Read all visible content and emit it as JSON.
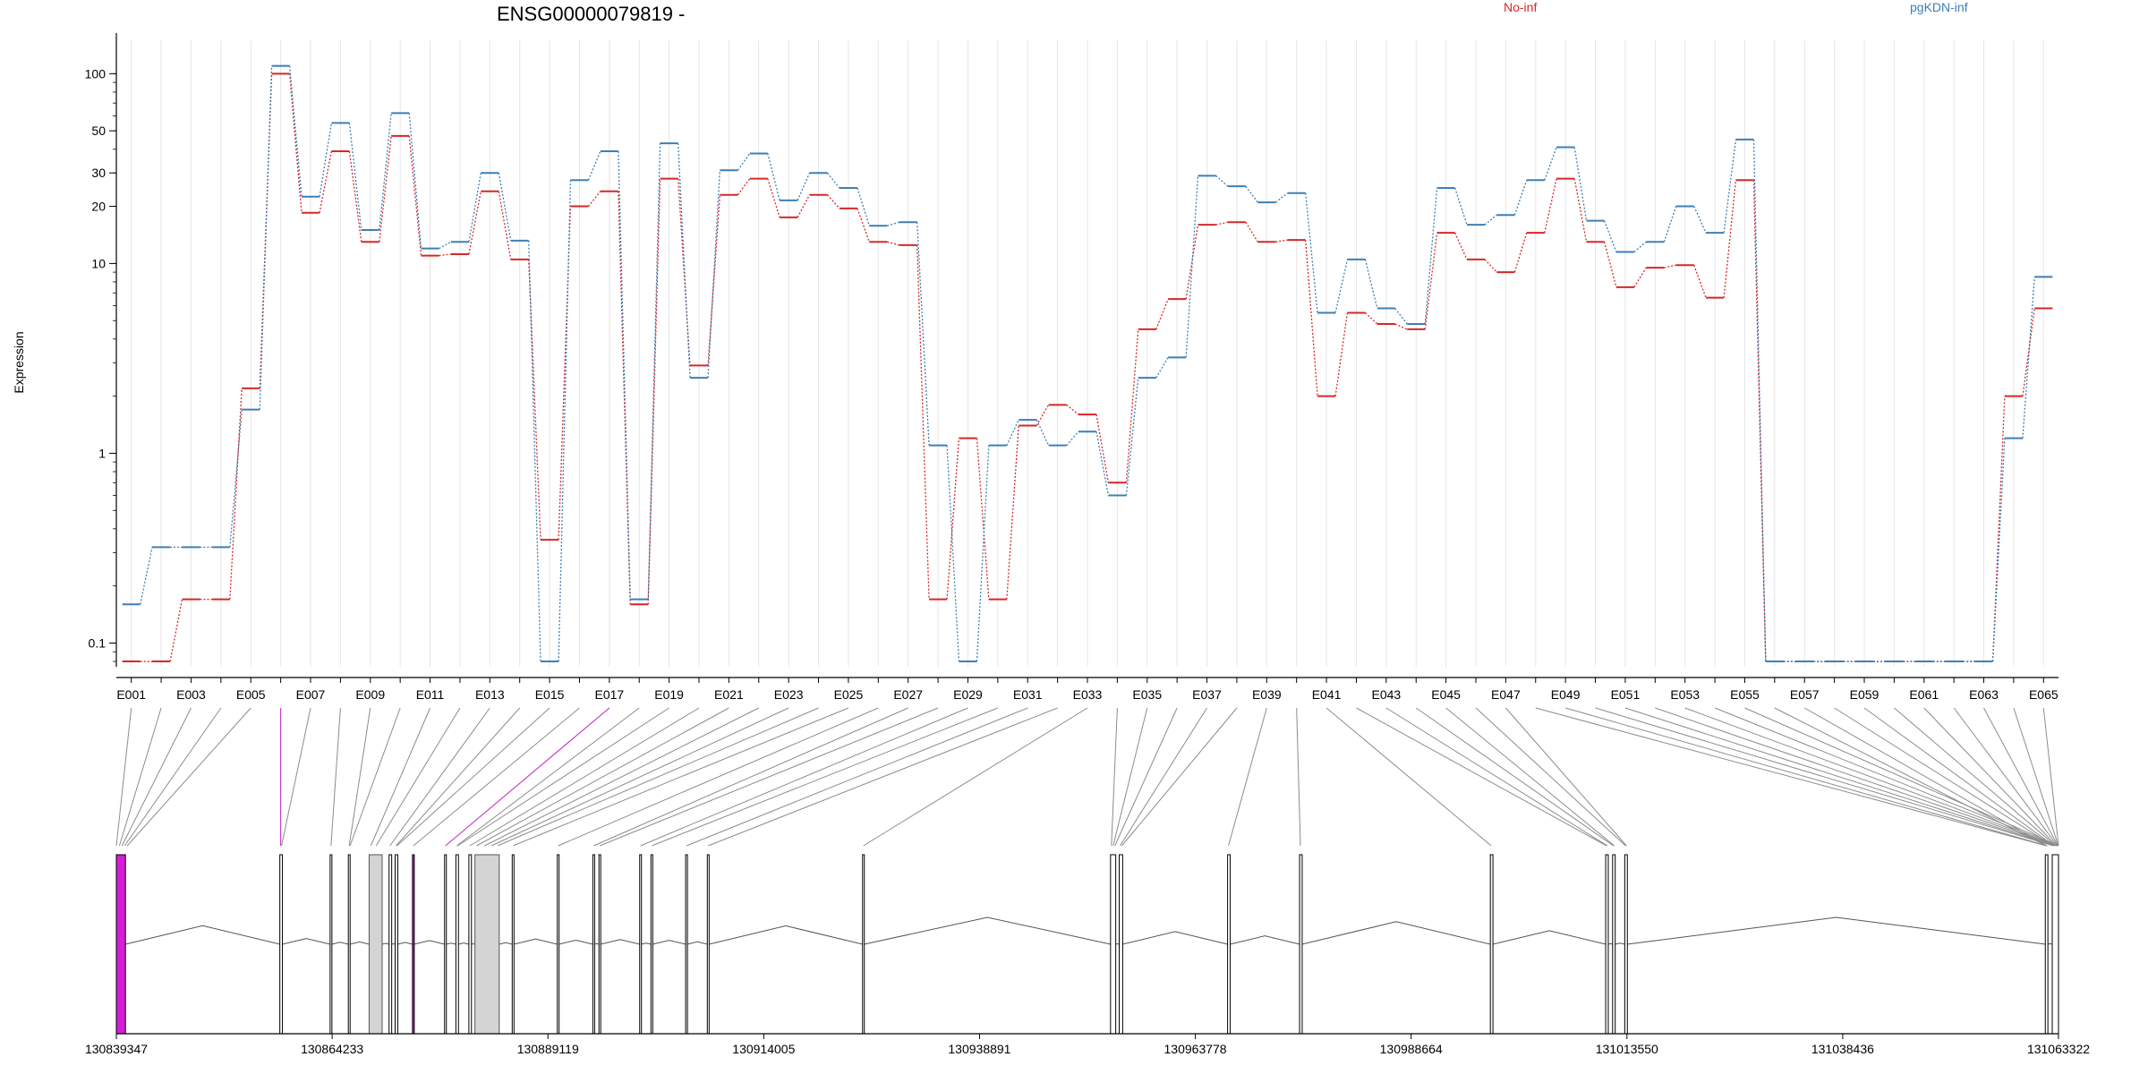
{
  "chart_data": {
    "type": "line",
    "title": "ENSG00000079819 -",
    "ylabel": "Expression",
    "yscale": "log",
    "yticks": [
      0.1,
      1,
      10,
      20,
      30,
      50,
      100
    ],
    "ylim": [
      0.075,
      150
    ],
    "grid": "vertical",
    "legend_placement": "top-right",
    "series": [
      {
        "name": "No-inf",
        "color": "#d62728",
        "values": [
          0.08,
          0.08,
          0.17,
          0.17,
          2.2,
          100,
          18.5,
          39,
          13,
          47,
          11,
          11.2,
          24,
          10.5,
          0.35,
          20,
          24,
          0.16,
          28,
          2.9,
          23,
          28,
          17.5,
          23,
          19.5,
          13,
          12.5,
          0.17,
          1.2,
          0.17,
          1.4,
          1.8,
          1.6,
          0.7,
          4.5,
          6.5,
          16,
          16.5,
          13,
          13.3,
          2,
          5.5,
          4.8,
          4.5,
          14.5,
          10.5,
          9,
          14.5,
          28,
          13,
          7.5,
          9.5,
          9.8,
          6.6,
          27.5,
          0.08,
          0.08,
          0.08,
          0.08,
          0.08,
          0.08,
          0.08,
          0.08,
          2,
          5.8
        ]
      },
      {
        "name": "pgKDN-inf",
        "color": "#3c7fb8",
        "values": [
          0.16,
          0.32,
          0.32,
          0.32,
          1.7,
          110,
          22.5,
          55,
          15,
          62,
          12,
          13,
          30,
          13.2,
          0.08,
          27.5,
          39,
          0.17,
          43,
          2.5,
          31,
          38,
          21.5,
          30,
          25,
          15.8,
          16.5,
          1.1,
          0.08,
          1.1,
          1.5,
          1.1,
          1.3,
          0.6,
          2.5,
          3.2,
          29,
          25.5,
          21,
          23.5,
          5.5,
          10.5,
          5.8,
          4.8,
          25,
          16,
          18,
          27.5,
          41,
          16.8,
          11.5,
          13,
          20,
          14.5,
          45,
          0.08,
          0.08,
          0.08,
          0.08,
          0.08,
          0.08,
          0.08,
          0.08,
          1.2,
          8.5
        ]
      }
    ],
    "exon_labels": [
      "E001",
      "E003",
      "E005",
      "E007",
      "E009",
      "E011",
      "E013",
      "E015",
      "E017",
      "E019",
      "E021",
      "E023",
      "E025",
      "E027",
      "E029",
      "E031",
      "E033",
      "E035",
      "E037",
      "E039",
      "E041",
      "E043",
      "E045",
      "E047",
      "E049",
      "E051",
      "E053",
      "E055",
      "E057",
      "E059",
      "E061",
      "E063",
      "E065"
    ],
    "genomic_axis": {
      "ticks": [
        "130839347",
        "130864233",
        "130889119",
        "130914005",
        "130938891",
        "130963778",
        "130988664",
        "131013550",
        "131038436",
        "131063322"
      ],
      "range": [
        130839347,
        131063322
      ]
    },
    "gene_model": {
      "features": [
        {
          "start": 130839347,
          "end": 130840400,
          "kind": "highlight"
        },
        {
          "start": 130858200,
          "end": 130858500,
          "kind": "exon"
        },
        {
          "start": 130864000,
          "end": 130864200,
          "kind": "exon"
        },
        {
          "start": 130866100,
          "end": 130866300,
          "kind": "exon"
        },
        {
          "start": 130868500,
          "end": 130870000,
          "kind": "alt"
        },
        {
          "start": 130870800,
          "end": 130871100,
          "kind": "exon"
        },
        {
          "start": 130871500,
          "end": 130871800,
          "kind": "exon"
        },
        {
          "start": 130873500,
          "end": 130873700,
          "kind": "highlight"
        },
        {
          "start": 130877200,
          "end": 130877400,
          "kind": "exon"
        },
        {
          "start": 130878500,
          "end": 130878800,
          "kind": "exon"
        },
        {
          "start": 130880000,
          "end": 130880300,
          "kind": "exon"
        },
        {
          "start": 130880700,
          "end": 130883500,
          "kind": "alt"
        },
        {
          "start": 130885000,
          "end": 130885200,
          "kind": "exon"
        },
        {
          "start": 130890200,
          "end": 130890400,
          "kind": "exon"
        },
        {
          "start": 130894300,
          "end": 130894500,
          "kind": "exon"
        },
        {
          "start": 130895000,
          "end": 130895200,
          "kind": "exon"
        },
        {
          "start": 130899700,
          "end": 130899900,
          "kind": "exon"
        },
        {
          "start": 130901000,
          "end": 130901200,
          "kind": "exon"
        },
        {
          "start": 130905000,
          "end": 130905200,
          "kind": "exon"
        },
        {
          "start": 130907500,
          "end": 130907700,
          "kind": "exon"
        },
        {
          "start": 130925400,
          "end": 130925600,
          "kind": "exon"
        },
        {
          "start": 130954000,
          "end": 130954600,
          "kind": "exon"
        },
        {
          "start": 130955000,
          "end": 130955400,
          "kind": "exon"
        },
        {
          "start": 130967500,
          "end": 130967800,
          "kind": "exon"
        },
        {
          "start": 130975800,
          "end": 130976100,
          "kind": "exon"
        },
        {
          "start": 130997800,
          "end": 130998100,
          "kind": "exon"
        },
        {
          "start": 131011100,
          "end": 131011400,
          "kind": "exon"
        },
        {
          "start": 131011900,
          "end": 131012200,
          "kind": "exon"
        },
        {
          "start": 131013300,
          "end": 131013600,
          "kind": "exon"
        },
        {
          "start": 131061800,
          "end": 131062100,
          "kind": "exon"
        },
        {
          "start": 131062600,
          "end": 131063322,
          "kind": "exon"
        }
      ]
    },
    "exon_genomic_positions": [
      130839347,
      130839700,
      130840000,
      130840300,
      130840600,
      130858300,
      130858400,
      130864100,
      130866200,
      130866300,
      130868700,
      130869300,
      130870900,
      130871600,
      130871700,
      130873600,
      130877300,
      130878600,
      130878700,
      130880100,
      130880900,
      130881800,
      130882600,
      130883300,
      130885100,
      130890300,
      130894400,
      130895100,
      130899800,
      130901100,
      130905100,
      130907600,
      130925500,
      130954100,
      130954300,
      130954500,
      130955100,
      130955300,
      130967600,
      130975900,
      130997900,
      131011200,
      131011300,
      131012000,
      131012100,
      131013400,
      131013500,
      131061900,
      131062000,
      131062700,
      131062800,
      131063000,
      131063100,
      131063200,
      131063300,
      131061900,
      131062000,
      131062700,
      131062800,
      131063000,
      131063100,
      131063200,
      131063250,
      131063300,
      131063322
    ],
    "highlighted_connectors": [
      5,
      16
    ]
  },
  "legend": {
    "items": [
      {
        "name": "No-inf",
        "color": "#d62728"
      },
      {
        "name": "pgKDN-inf",
        "color": "#3c7fb8"
      }
    ]
  }
}
